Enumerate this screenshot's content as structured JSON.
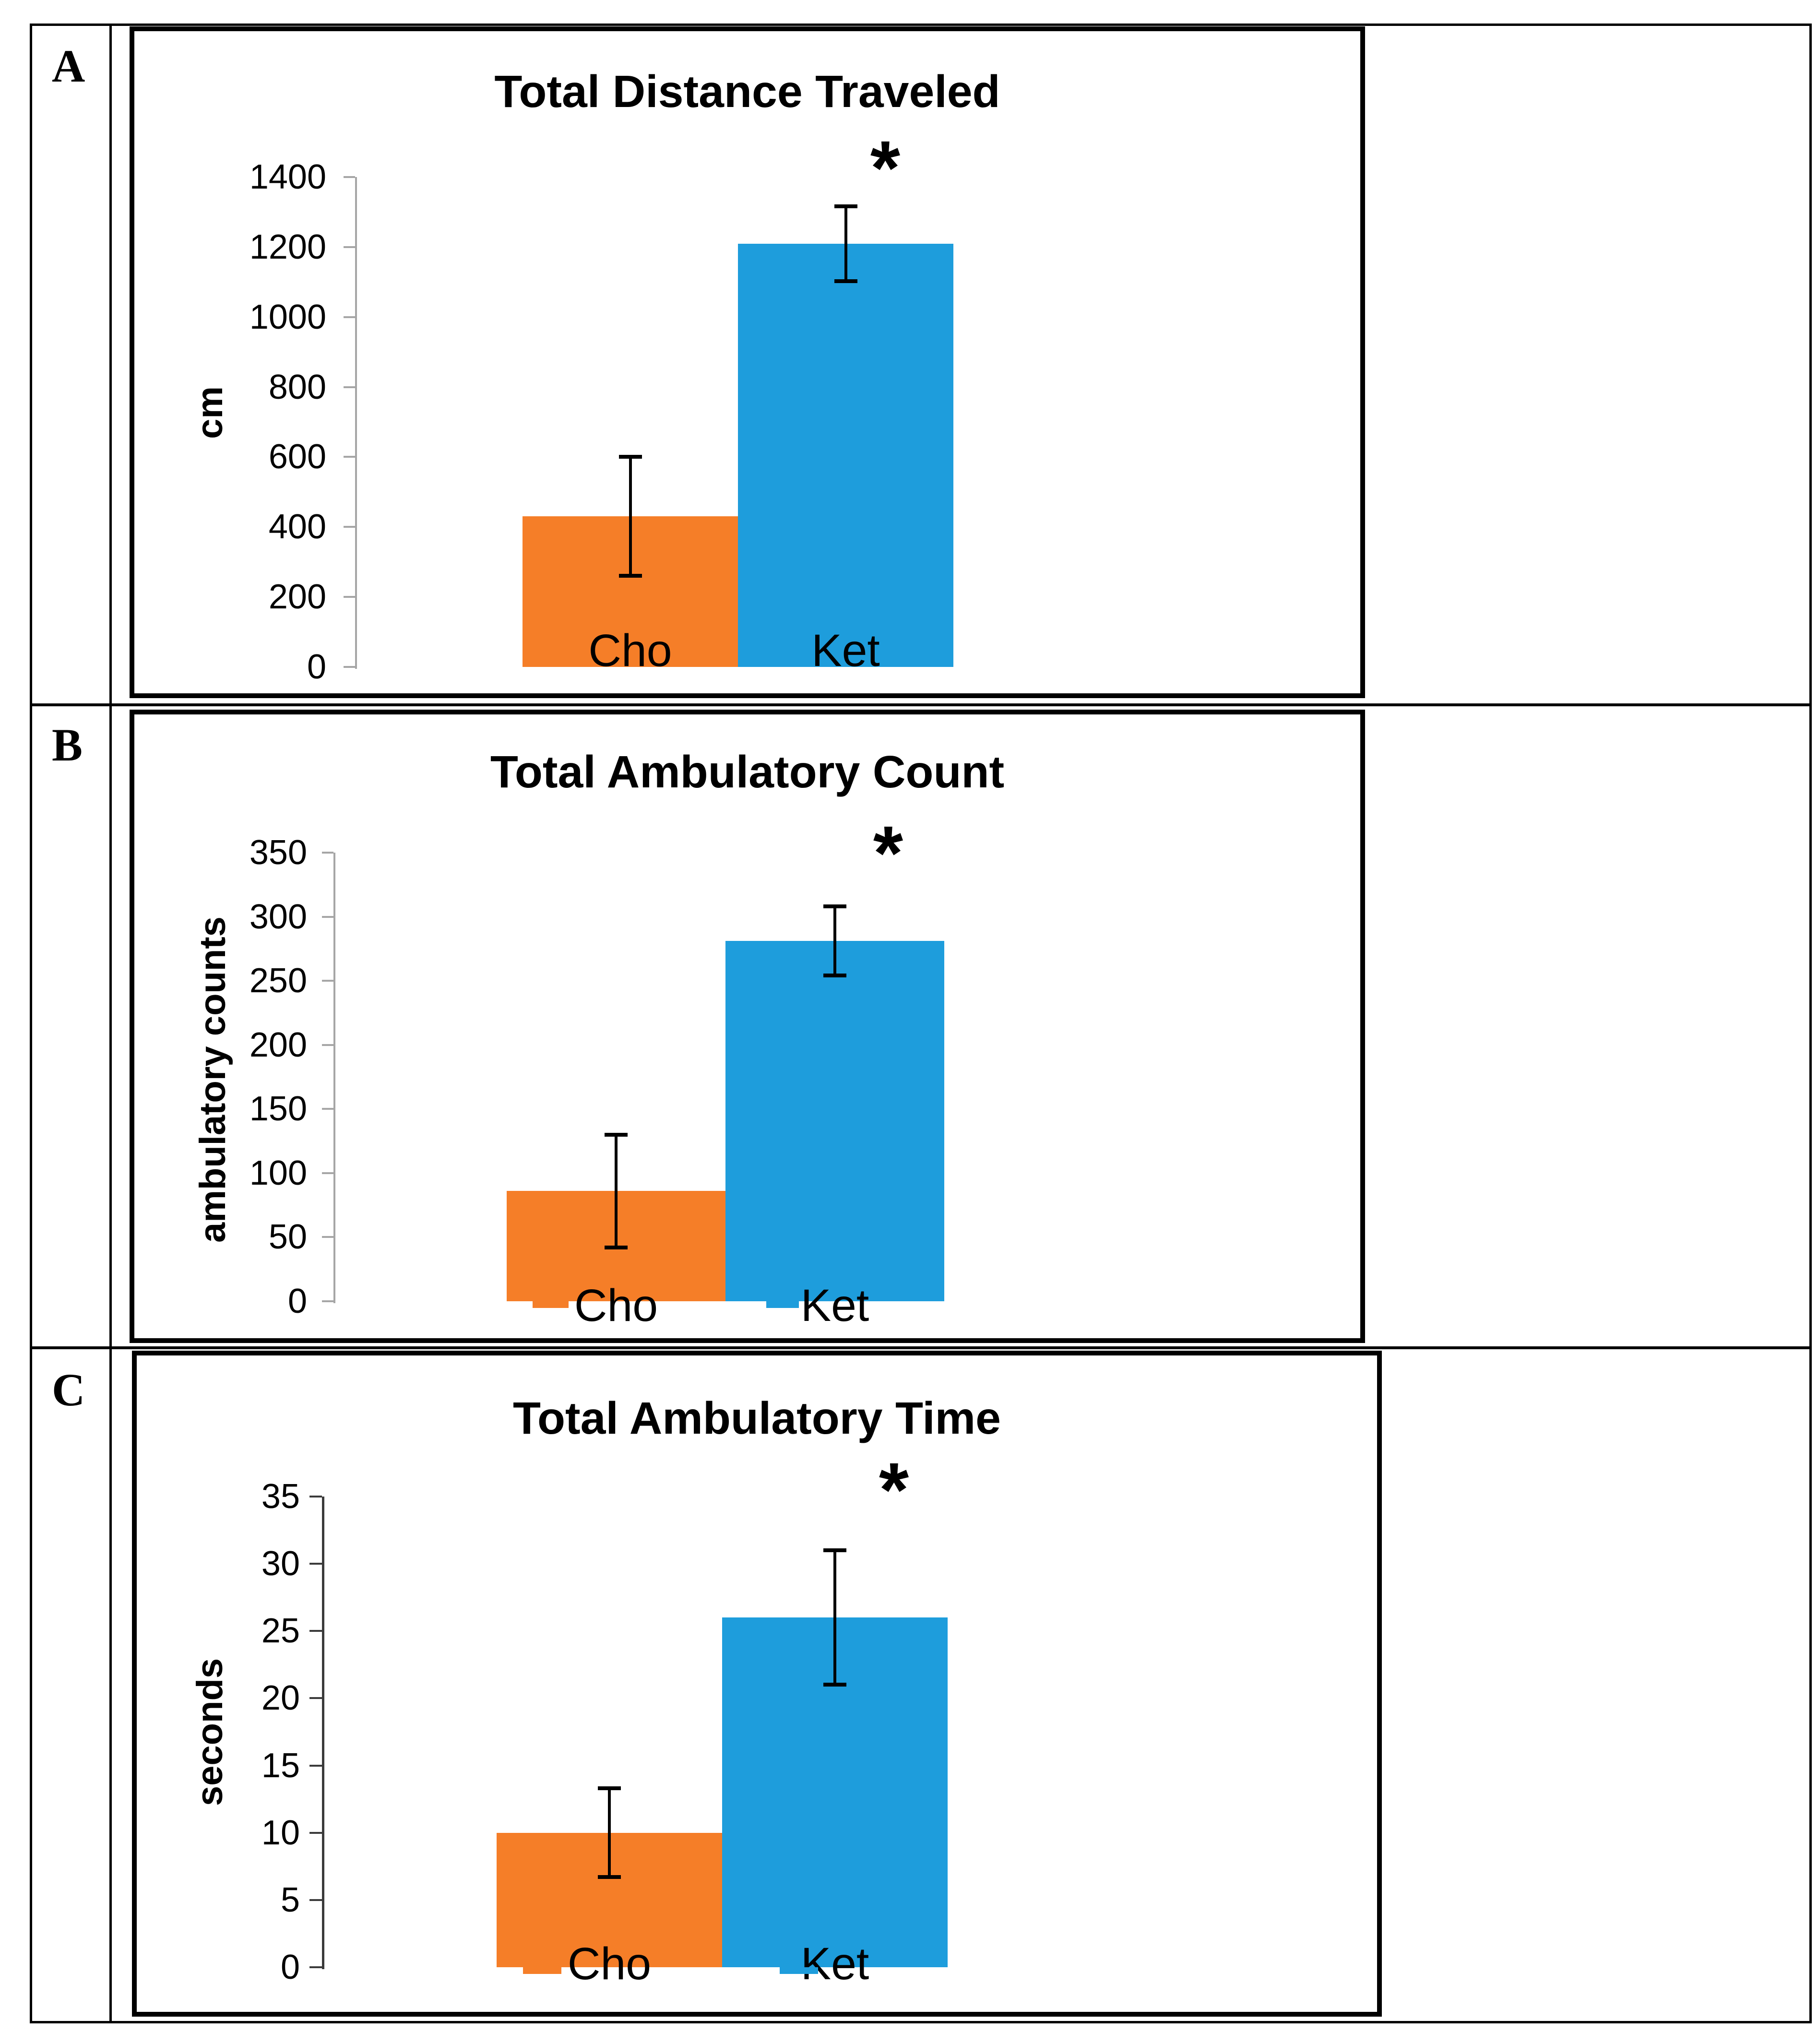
{
  "letters": [
    "A",
    "B",
    "C"
  ],
  "colors": {
    "cho_bar": "#F57E28",
    "ket_bar": "#1E9DDC",
    "axis_gray": "#A6A6A6",
    "axis_dark": "#3B3B3B",
    "text": "#000000"
  },
  "chart_data": [
    {
      "type": "bar",
      "title": "Total Distance Traveled",
      "ylabel": "cm",
      "xlabel": "",
      "categories": [
        "Cho",
        "Ket"
      ],
      "values": [
        430,
        1210
      ],
      "errors": [
        170,
        107
      ],
      "ylim": [
        0,
        1400
      ],
      "yticks": [
        0,
        200,
        400,
        600,
        800,
        1000,
        1200,
        1400
      ],
      "grid": false,
      "legend": false,
      "significance": {
        "marker": "*",
        "category": "Ket"
      }
    },
    {
      "type": "bar",
      "title": "Total Ambulatory Count",
      "ylabel": "ambulatory counts",
      "xlabel": "",
      "categories": [
        "Cho",
        "Ket"
      ],
      "values": [
        86,
        281
      ],
      "errors": [
        44,
        27
      ],
      "ylim": [
        0,
        350
      ],
      "yticks": [
        0,
        50,
        100,
        150,
        200,
        250,
        300,
        350
      ],
      "grid": false,
      "legend": false,
      "significance": {
        "marker": "*",
        "category": "Ket"
      }
    },
    {
      "type": "bar",
      "title": "Total Ambulatory Time",
      "ylabel": "seconds",
      "xlabel": "",
      "categories": [
        "Cho",
        "Ket"
      ],
      "values": [
        10,
        26
      ],
      "errors": [
        3.3,
        5
      ],
      "ylim": [
        0,
        35
      ],
      "yticks": [
        0,
        5,
        10,
        15,
        20,
        25,
        30,
        35
      ],
      "grid": false,
      "legend": false,
      "significance": {
        "marker": "*",
        "category": "Ket"
      }
    }
  ]
}
